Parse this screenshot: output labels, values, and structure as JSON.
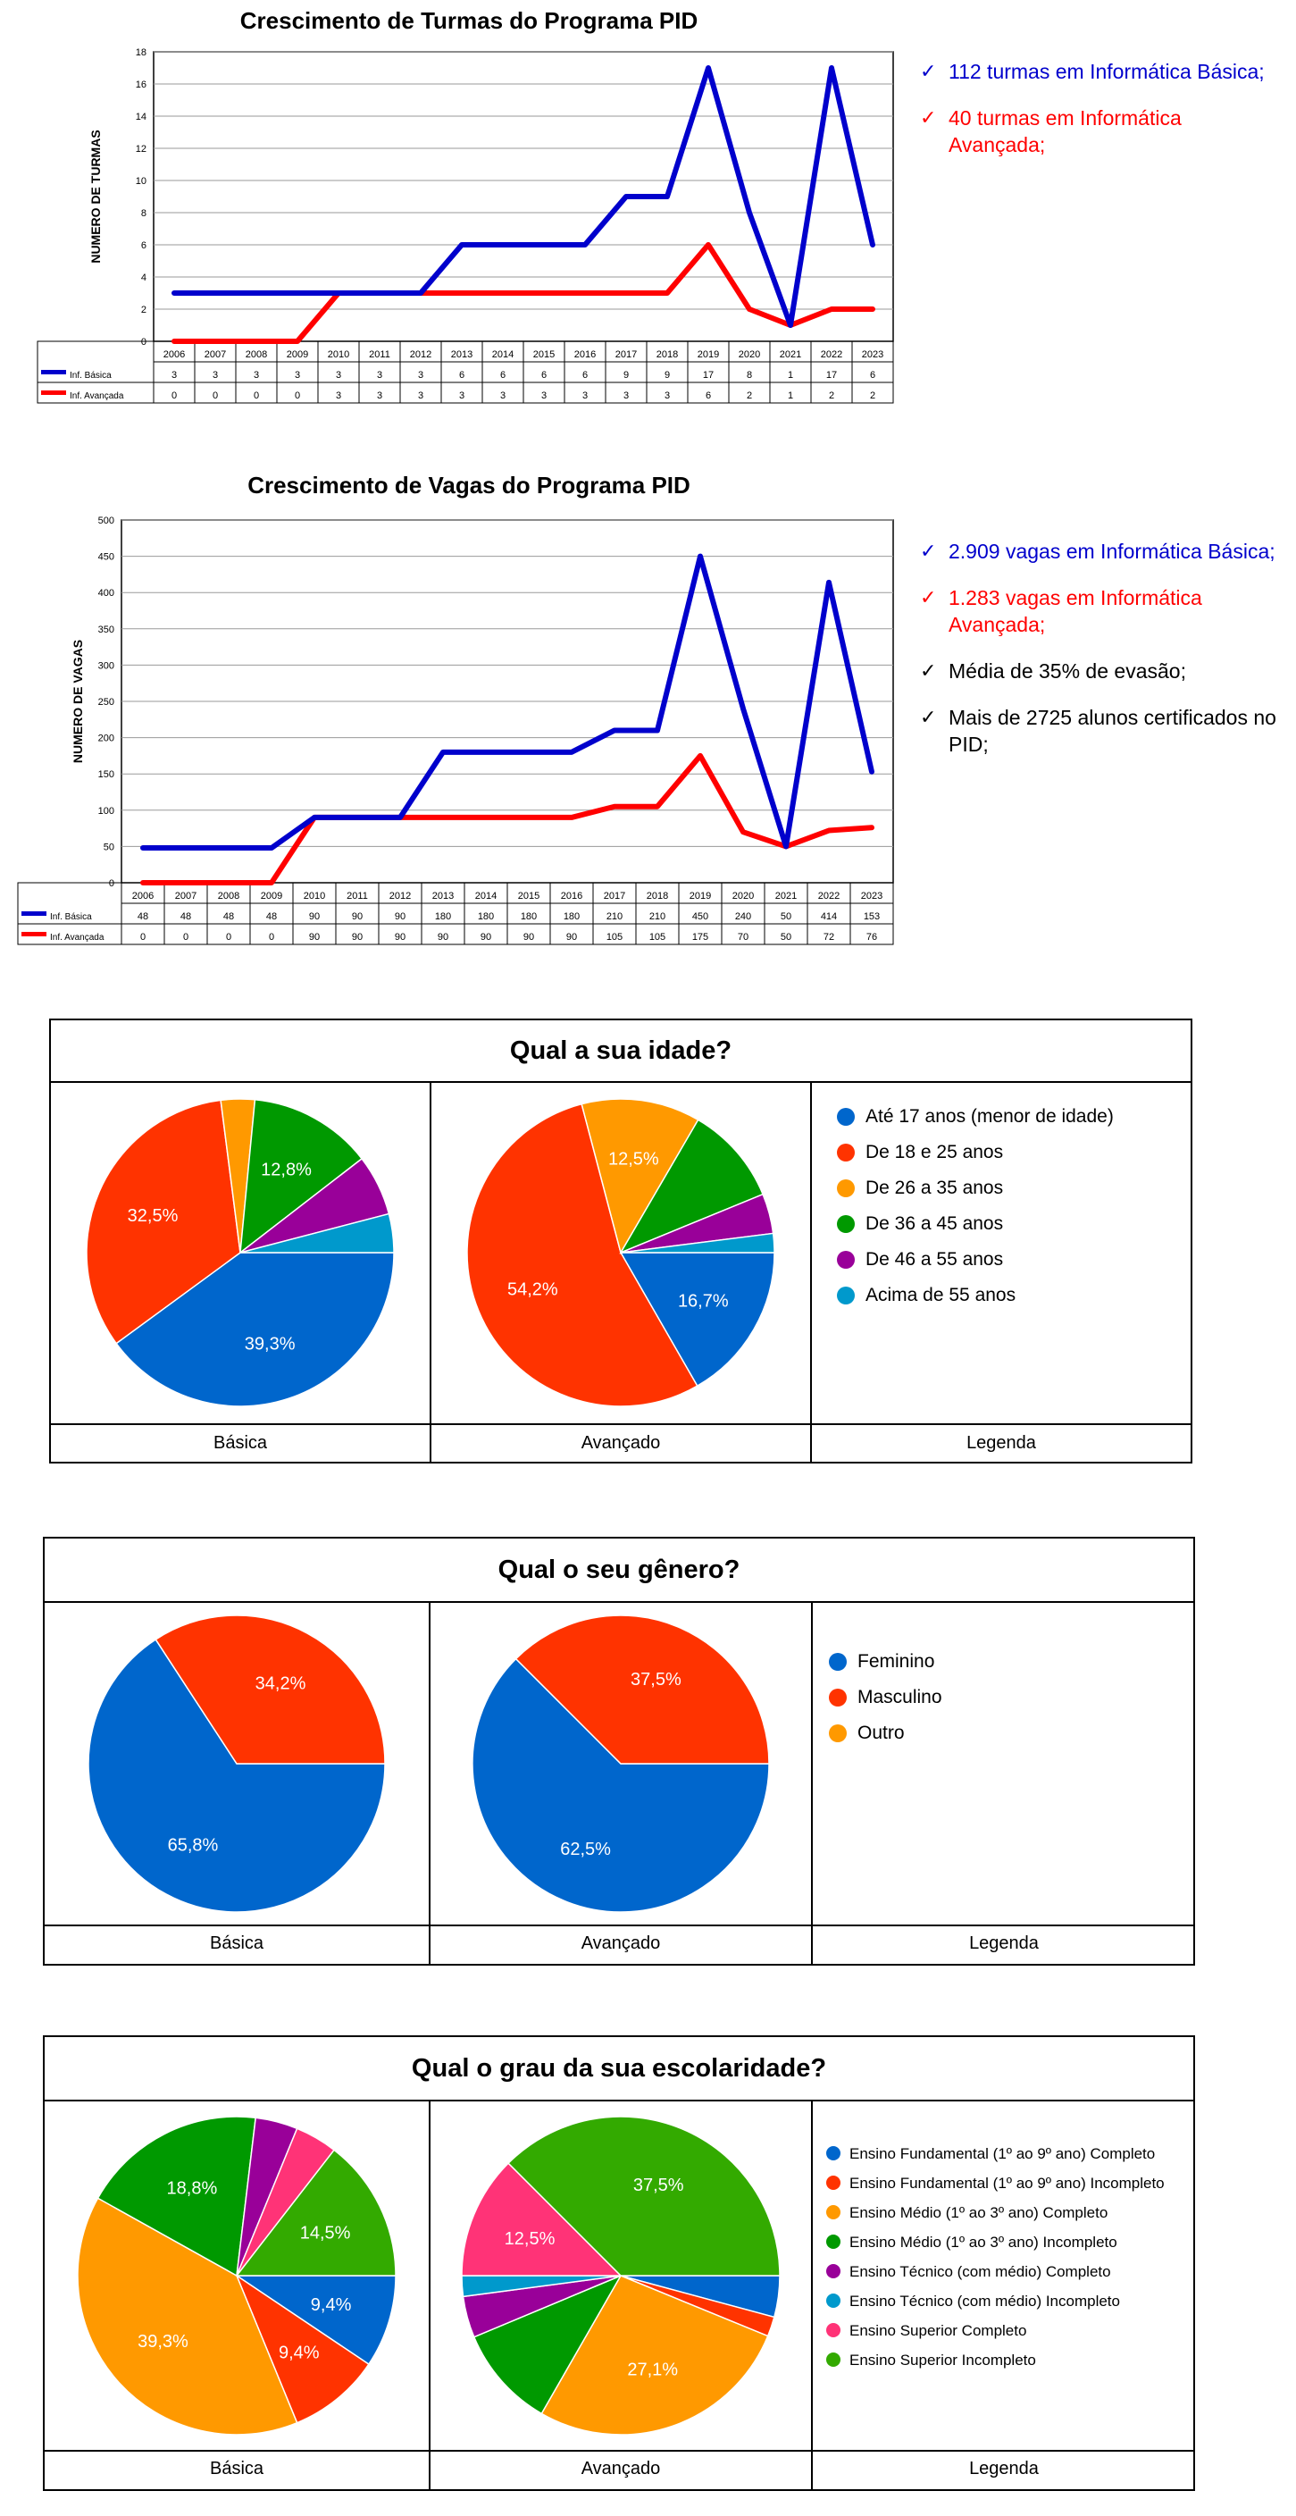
{
  "chart_data": [
    {
      "type": "line",
      "title": "Crescimento de Turmas do Programa PID",
      "ylabel": "NUMERO DE TURMAS",
      "xlabel": "",
      "ylim": [
        0,
        18
      ],
      "yticks": [
        "0",
        "2",
        "4",
        "6",
        "8",
        "10",
        "12",
        "14",
        "16",
        "18"
      ],
      "categories": [
        "2006",
        "2007",
        "2008",
        "2009",
        "2010",
        "2011",
        "2012",
        "2013",
        "2014",
        "2015",
        "2016",
        "2017",
        "2018",
        "2019",
        "2020",
        "2021",
        "2022",
        "2023"
      ],
      "series": [
        {
          "name": "Inf. Básica",
          "color": "#0000cc",
          "values": [
            3,
            3,
            3,
            3,
            3,
            3,
            3,
            6,
            6,
            6,
            6,
            9,
            9,
            17,
            8,
            1,
            17,
            6
          ]
        },
        {
          "name": "Inf. Avançada",
          "color": "#ff0000",
          "values": [
            0,
            0,
            0,
            0,
            3,
            3,
            3,
            3,
            3,
            3,
            3,
            3,
            3,
            6,
            2,
            1,
            2,
            2
          ]
        }
      ],
      "grid": "horizontal",
      "table": true
    },
    {
      "type": "line",
      "title": "Crescimento de Vagas do Programa PID",
      "ylabel": "NUMERO DE VAGAS",
      "xlabel": "",
      "ylim": [
        0,
        500
      ],
      "yticks": [
        "0",
        "50",
        "100",
        "150",
        "200",
        "250",
        "300",
        "350",
        "400",
        "450",
        "500"
      ],
      "categories": [
        "2006",
        "2007",
        "2008",
        "2009",
        "2010",
        "2011",
        "2012",
        "2013",
        "2014",
        "2015",
        "2016",
        "2017",
        "2018",
        "2019",
        "2020",
        "2021",
        "2022",
        "2023"
      ],
      "series": [
        {
          "name": "Inf. Básica",
          "color": "#0000cc",
          "values": [
            48,
            48,
            48,
            48,
            90,
            90,
            90,
            180,
            180,
            180,
            180,
            210,
            210,
            450,
            240,
            50,
            414,
            153
          ]
        },
        {
          "name": "Inf. Avançada",
          "color": "#ff0000",
          "values": [
            0,
            0,
            0,
            0,
            90,
            90,
            90,
            90,
            90,
            90,
            90,
            105,
            105,
            175,
            70,
            50,
            72,
            76
          ]
        }
      ],
      "grid": "horizontal",
      "table": true
    },
    {
      "type": "pie",
      "title": "Qual a sua idade?",
      "charts": [
        {
          "name": "Básica",
          "values": [
            39.3,
            32.5,
            3.5,
            12.8,
            6.3,
            4.0
          ]
        },
        {
          "name": "Avançado",
          "values": [
            16.7,
            54.2,
            12.5,
            10.4,
            4.2,
            2.0
          ]
        }
      ],
      "legend": [
        "Até 17 anos (menor de idade)",
        "De 18 e 25 anos",
        "De 26 a 35 anos",
        "De 36 a 45 anos",
        "De 46 a 55 anos",
        "Acima de 55 anos"
      ],
      "colors": [
        "#0066cc",
        "#ff3300",
        "#ff9900",
        "#009900",
        "#990099",
        "#0099cc"
      ],
      "labels_shown": [
        [
          "39,3%",
          "32,5%",
          "",
          "12,8%",
          "",
          ""
        ],
        [
          "16,7%",
          "54,2%",
          "12,5%",
          "",
          "",
          ""
        ]
      ]
    },
    {
      "type": "pie",
      "title": "Qual o seu gênero?",
      "charts": [
        {
          "name": "Básica",
          "values": [
            65.8,
            34.2,
            0
          ]
        },
        {
          "name": "Avançado",
          "values": [
            62.5,
            37.5,
            0
          ]
        }
      ],
      "legend": [
        "Feminino",
        "Masculino",
        "Outro"
      ],
      "colors": [
        "#0066cc",
        "#ff3300",
        "#ff9900"
      ],
      "labels_shown": [
        [
          "65,8%",
          "34,2%",
          ""
        ],
        [
          "62,5%",
          "37,5%",
          ""
        ]
      ]
    },
    {
      "type": "pie",
      "title": "Qual o grau da sua escolaridade?",
      "charts": [
        {
          "name": "Básica",
          "values": [
            9.4,
            9.4,
            39.3,
            18.8,
            4.3,
            0,
            4.3,
            14.5
          ]
        },
        {
          "name": "Avançado",
          "values": [
            4.2,
            2.0,
            27.1,
            10.4,
            4.2,
            2.1,
            12.5,
            37.5
          ]
        }
      ],
      "legend": [
        "Ensino Fundamental (1º ao 9º ano) Completo",
        "Ensino Fundamental (1º ao 9º ano) Incompleto",
        "Ensino Médio (1º ao 3º ano) Completo",
        "Ensino Médio (1º ao 3º ano) Incompleto",
        "Ensino Técnico (com médio) Completo",
        "Ensino Técnico (com médio) Incompleto",
        "Ensino Superior Completo",
        "Ensino Superior Incompleto"
      ],
      "colors": [
        "#0066cc",
        "#ff3300",
        "#ff9900",
        "#009900",
        "#990099",
        "#0099cc",
        "#ff3377",
        "#33aa00"
      ],
      "labels_shown": [
        [
          "9,4%",
          "9,4%",
          "39,3%",
          "18,8%",
          "",
          "",
          "",
          "14,5%"
        ],
        [
          "",
          "",
          "27,1%",
          "",
          "",
          "",
          "12,5%",
          "37,5%"
        ]
      ]
    }
  ],
  "bullets_turmas": [
    {
      "text": "112 turmas em Informática Básica;",
      "color": "#0000cc"
    },
    {
      "text": "40 turmas em Informática Avançada;",
      "color": "#ff0000"
    }
  ],
  "bullets_vagas": [
    {
      "text": "2.909 vagas em Informática Básica;",
      "color": "#0000cc"
    },
    {
      "text": "1.283 vagas em Informática Avançada;",
      "color": "#ff0000"
    },
    {
      "text": "Média de 35% de evasão;",
      "color": "#000000"
    },
    {
      "text": "Mais de 2725 alunos certificados no PID;",
      "color": "#000000"
    }
  ],
  "check_symbol": "✓",
  "legend_column_label": "Legenda"
}
